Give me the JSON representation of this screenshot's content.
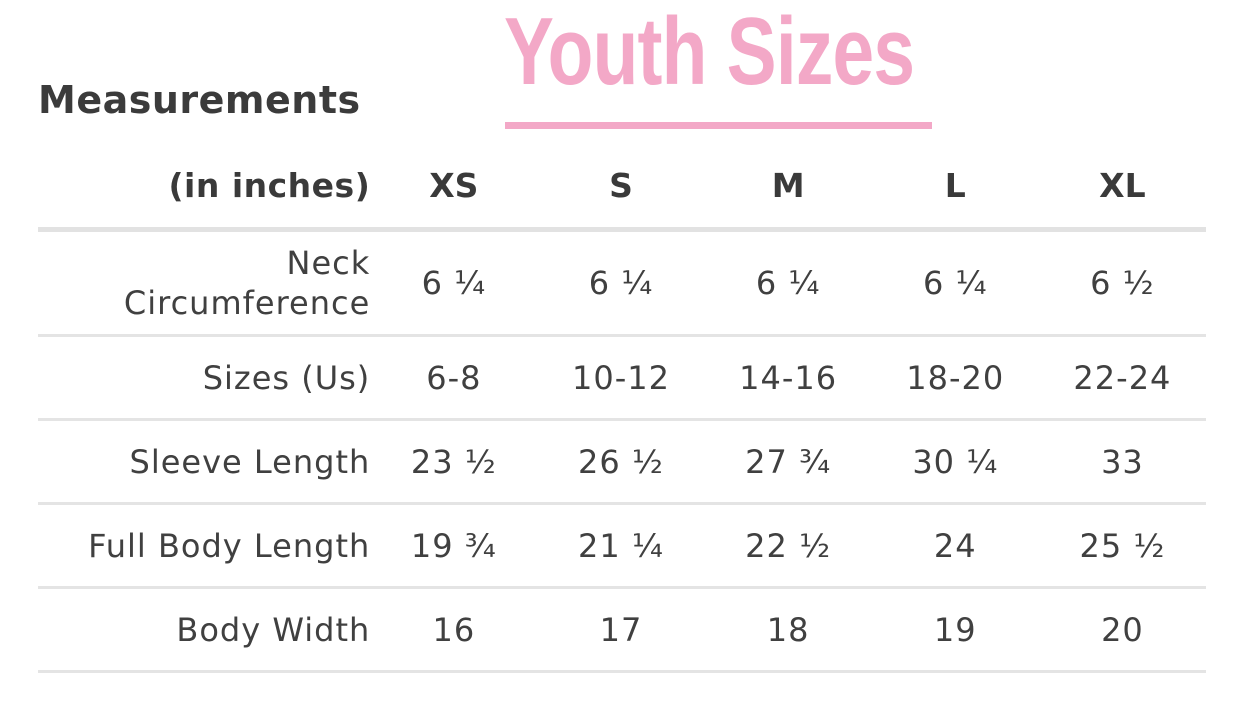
{
  "heading": "Measurements",
  "title": "Youth Sizes",
  "colors": {
    "accent_pink": "#f3a8c7",
    "text": "#3a3a3a",
    "divider": "#e2e2e2"
  },
  "table": {
    "columns": {
      "label": "(in inches)",
      "xs": "XS",
      "s": "S",
      "m": "M",
      "l": "L",
      "xl": "XL"
    },
    "rows": [
      {
        "label_line1": "Neck",
        "label_line2": "Circumference",
        "xs": "6 ¼",
        "s": "6 ¼",
        "m": "6 ¼",
        "l": "6 ¼",
        "xl": "6 ½"
      },
      {
        "label": "Sizes (Us)",
        "xs": "6-8",
        "s": "10-12",
        "m": "14-16",
        "l": "18-20",
        "xl": "22-24"
      },
      {
        "label": "Sleeve Length",
        "xs": "23 ½",
        "s": "26 ½",
        "m": "27 ¾",
        "l": "30 ¼",
        "xl": "33"
      },
      {
        "label": "Full Body Length",
        "xs": "19 ¾",
        "s": "21 ¼",
        "m": "22 ½",
        "l": "24",
        "xl": "25 ½"
      },
      {
        "label": "Body Width",
        "xs": "16",
        "s": "17",
        "m": "18",
        "l": "19",
        "xl": "20"
      }
    ]
  }
}
